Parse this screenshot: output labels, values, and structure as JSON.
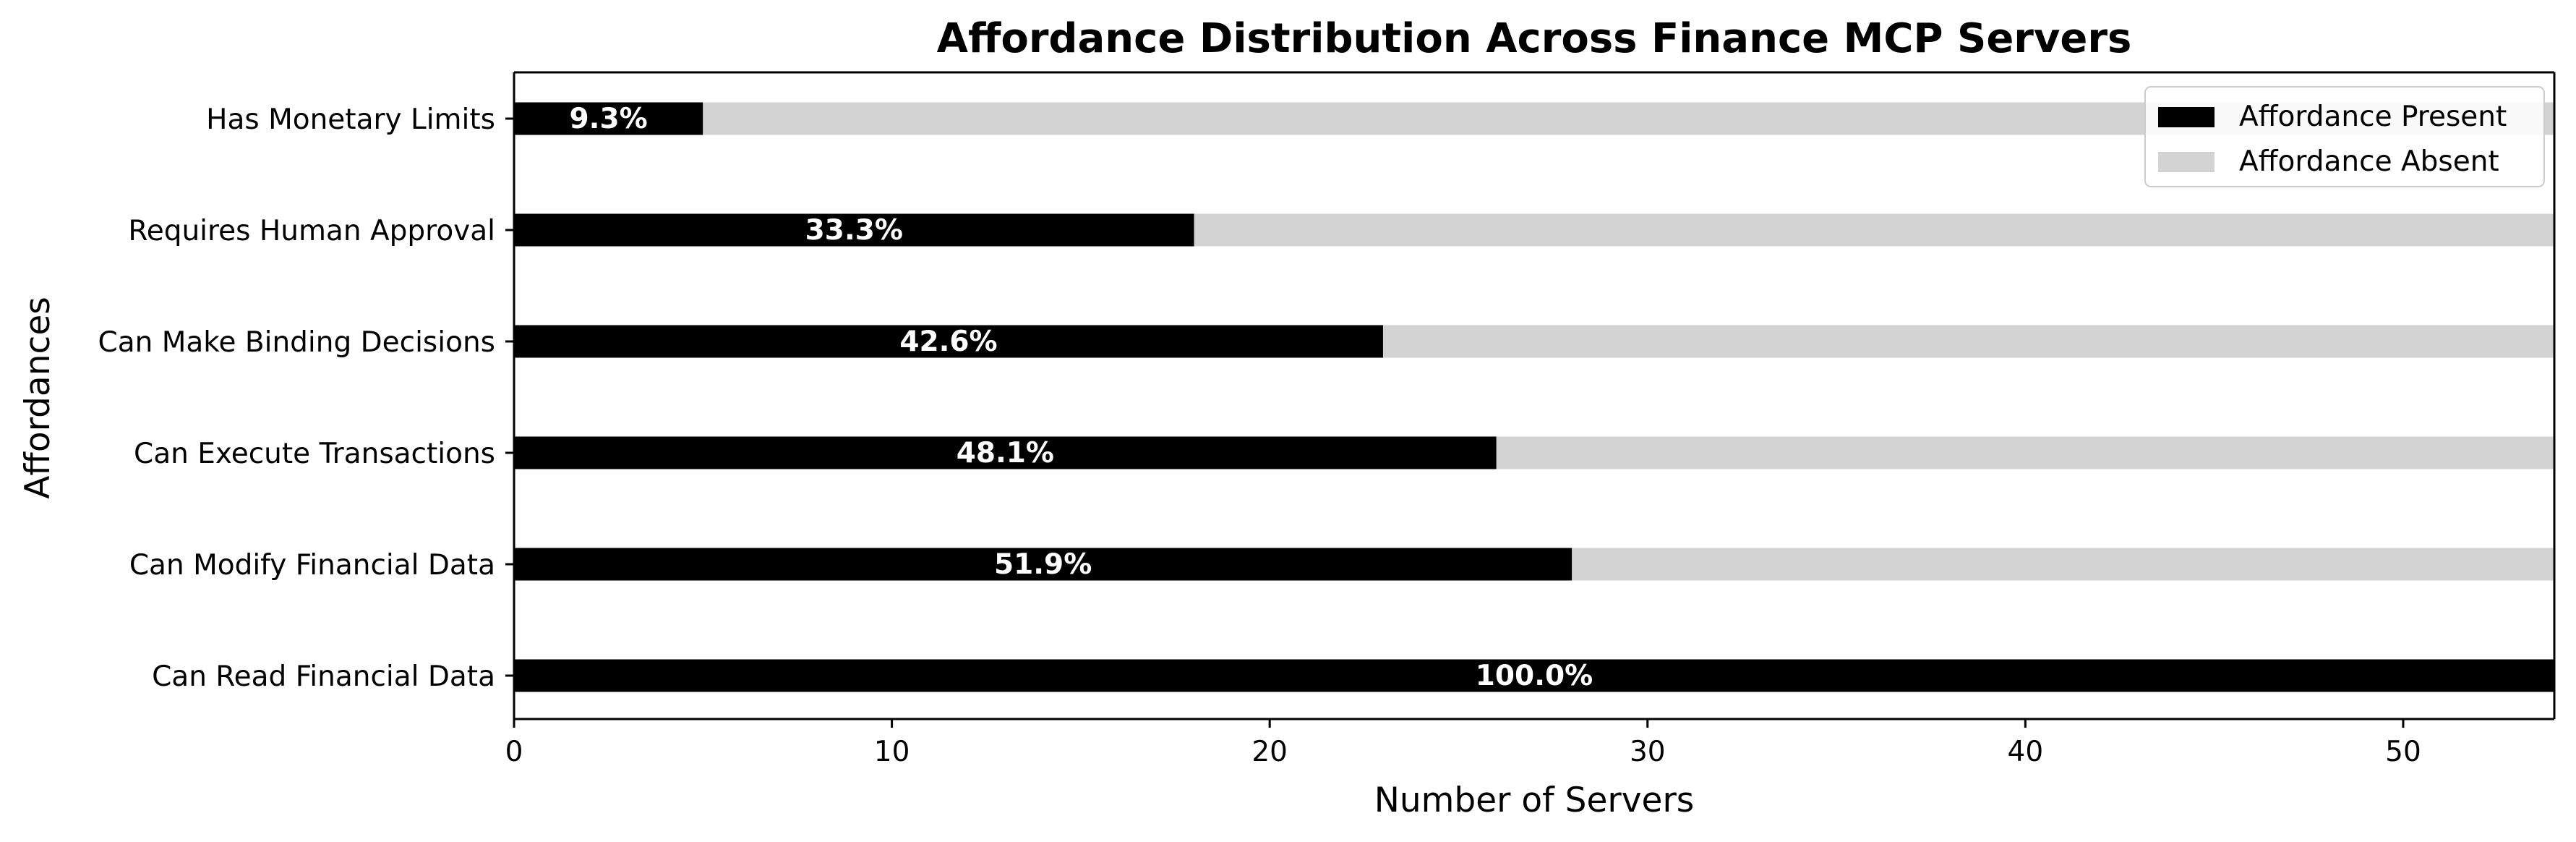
{
  "chart_data": {
    "type": "bar",
    "orientation": "horizontal",
    "stacked": true,
    "title": "Affordance Distribution Across Finance MCP Servers",
    "xlabel": "Number of Servers",
    "ylabel": "Affordances",
    "xlim": [
      0,
      54
    ],
    "xticks": [
      0,
      10,
      20,
      30,
      40,
      50
    ],
    "grid": false,
    "legend_position": "top-right",
    "categories": [
      "Can Read Financial Data",
      "Can Modify Financial Data",
      "Can Execute Transactions",
      "Can Make Binding Decisions",
      "Requires Human Approval",
      "Has Monetary Limits"
    ],
    "series": [
      {
        "name": "Affordance Present",
        "color": "#000000",
        "values": [
          54,
          28,
          26,
          23,
          18,
          5
        ]
      },
      {
        "name": "Affordance Absent",
        "color": "#d3d3d3",
        "values": [
          0,
          26,
          28,
          31,
          36,
          49
        ]
      }
    ],
    "percent_labels": [
      "100.0%",
      "51.9%",
      "48.1%",
      "42.6%",
      "33.3%",
      "9.3%"
    ]
  }
}
